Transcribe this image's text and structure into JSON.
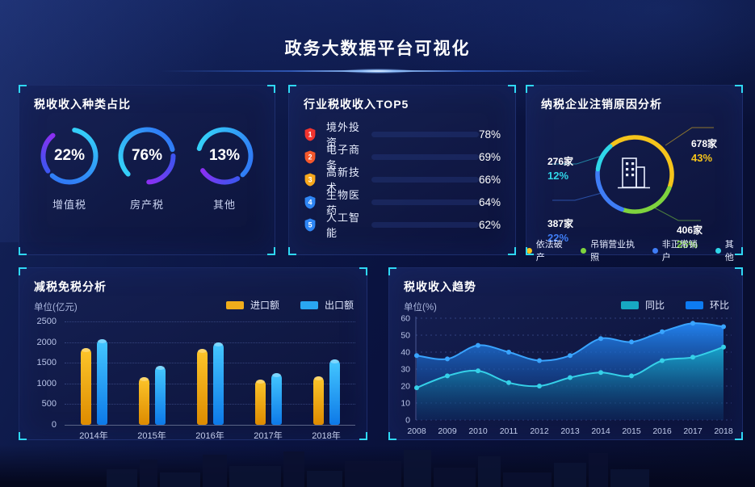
{
  "page": {
    "title": "政务大数据平台可视化"
  },
  "panel_tax_types": {
    "title": "税收收入种类占比",
    "gauges": [
      {
        "percent": "22%",
        "label": "增值税",
        "value": 22
      },
      {
        "percent": "76%",
        "label": "房产税",
        "value": 76
      },
      {
        "percent": "13%",
        "label": "其他",
        "value": 13
      }
    ]
  },
  "panel_industry": {
    "title": "行业税收收入TOP5",
    "items": [
      {
        "rank": "1",
        "label": "境外投资",
        "percent": "78%",
        "value": 78,
        "badge_color": "#f1342f"
      },
      {
        "rank": "2",
        "label": "电子商务",
        "percent": "69%",
        "value": 69,
        "badge_color": "#f5582b"
      },
      {
        "rank": "3",
        "label": "高新技术",
        "percent": "66%",
        "value": 66,
        "badge_color": "#f7a81c"
      },
      {
        "rank": "4",
        "label": "生物医药",
        "percent": "64%",
        "value": 64,
        "badge_color": "#2e86f5"
      },
      {
        "rank": "5",
        "label": "人工智能",
        "percent": "62%",
        "value": 62,
        "badge_color": "#2e86f5"
      }
    ]
  },
  "panel_cancellation": {
    "title": "纳税企业注销原因分析",
    "center_icon": "building-icon",
    "segments": [
      {
        "label": "依法破产",
        "count": "678家",
        "percent": "43%",
        "value": 43,
        "color": "#f5c41b"
      },
      {
        "label": "吊销营业执照",
        "count": "406家",
        "percent": "25%",
        "value": 25,
        "color": "#7ed33e"
      },
      {
        "label": "非正常销户",
        "count": "387家",
        "percent": "22%",
        "value": 22,
        "color": "#3f7df6"
      },
      {
        "label": "其他",
        "count": "276家",
        "percent": "12%",
        "value": 12,
        "color": "#2fd6e8"
      }
    ]
  },
  "panel_tax_reduction": {
    "title": "减税免税分析",
    "unit": "单位(亿元)",
    "y_ticks": [
      2500,
      2000,
      1500,
      1000,
      500,
      0
    ],
    "ymax": 2500,
    "categories": [
      "2014年",
      "2015年",
      "2016年",
      "2017年",
      "2018年"
    ],
    "series": [
      {
        "name": "进口额",
        "color_top": "#fdc62b",
        "color_bottom": "#dd8b00",
        "values": [
          1850,
          1150,
          1830,
          1100,
          1170
        ]
      },
      {
        "name": "出口额",
        "color_top": "#45c8ff",
        "color_bottom": "#0d79e8",
        "values": [
          2080,
          1430,
          2000,
          1250,
          1580
        ]
      }
    ],
    "legend": [
      {
        "label": "进口额",
        "color": "#f0ad1b"
      },
      {
        "label": "出口额",
        "color": "#29a6f2"
      }
    ]
  },
  "panel_tax_trend": {
    "title": "税收收入趋势",
    "unit": "单位(%)",
    "y_ticks": [
      60,
      50,
      40,
      30,
      20,
      10,
      0
    ],
    "ymax": 60,
    "x": [
      "2008",
      "2009",
      "2010",
      "2011",
      "2012",
      "2013",
      "2014",
      "2015",
      "2016",
      "2017",
      "2018"
    ],
    "series": [
      {
        "name": "环比",
        "color": "#2e8ef5",
        "line": "#39a4ff",
        "fill_top": "#2387f5",
        "fill_bottom": "#0b2a6e",
        "values": [
          38,
          36,
          44,
          40,
          35,
          38,
          48,
          46,
          52,
          57,
          55
        ]
      },
      {
        "name": "同比",
        "color": "#2fc8e0",
        "line": "#35d0e8",
        "fill_top": "#17a9cc",
        "fill_bottom": "#0d3f63",
        "values": [
          19,
          26,
          29,
          22,
          20,
          25,
          28,
          26,
          35,
          37,
          43
        ]
      }
    ],
    "legend": [
      {
        "label": "同比",
        "color": "#17a8c2"
      },
      {
        "label": "环比",
        "color": "#0d7bf2"
      }
    ]
  },
  "chart_data": [
    {
      "type": "pie",
      "title": "税收收入种类占比",
      "unit": "%",
      "categories": [
        "增值税",
        "房产税",
        "其他"
      ],
      "values": [
        22,
        76,
        13
      ]
    },
    {
      "type": "bar",
      "title": "行业税收收入TOP5",
      "orientation": "horizontal",
      "unit": "%",
      "categories": [
        "境外投资",
        "电子商务",
        "高新技术",
        "生物医药",
        "人工智能"
      ],
      "values": [
        78,
        69,
        66,
        64,
        62
      ],
      "xlim": [
        0,
        100
      ]
    },
    {
      "type": "pie",
      "title": "纳税企业注销原因分析",
      "unit": "%",
      "categories": [
        "依法破产",
        "吊销营业执照",
        "非正常销户",
        "其他"
      ],
      "values": [
        43,
        25,
        22,
        12
      ],
      "counts": [
        "678家",
        "406家",
        "387家",
        "276家"
      ],
      "legend_position": "bottom"
    },
    {
      "type": "bar",
      "title": "减税免税分析",
      "ylabel": "单位(亿元)",
      "ylim": [
        0,
        2500
      ],
      "grid": "dotted",
      "categories": [
        "2014年",
        "2015年",
        "2016年",
        "2017年",
        "2018年"
      ],
      "series": [
        {
          "name": "进口额",
          "values": [
            1850,
            1150,
            1830,
            1100,
            1170
          ]
        },
        {
          "name": "出口额",
          "values": [
            2080,
            1430,
            2000,
            1250,
            1580
          ]
        }
      ],
      "legend_position": "top-right"
    },
    {
      "type": "area",
      "title": "税收收入趋势",
      "ylabel": "单位(%)",
      "ylim": [
        0,
        60
      ],
      "grid": "dotted",
      "x": [
        2008,
        2009,
        2010,
        2011,
        2012,
        2013,
        2014,
        2015,
        2016,
        2017,
        2018
      ],
      "series": [
        {
          "name": "同比",
          "values": [
            19,
            26,
            29,
            22,
            20,
            25,
            28,
            26,
            35,
            37,
            43
          ]
        },
        {
          "name": "环比",
          "values": [
            38,
            36,
            44,
            40,
            35,
            38,
            48,
            46,
            52,
            57,
            55
          ]
        }
      ],
      "legend_position": "top-right"
    }
  ]
}
